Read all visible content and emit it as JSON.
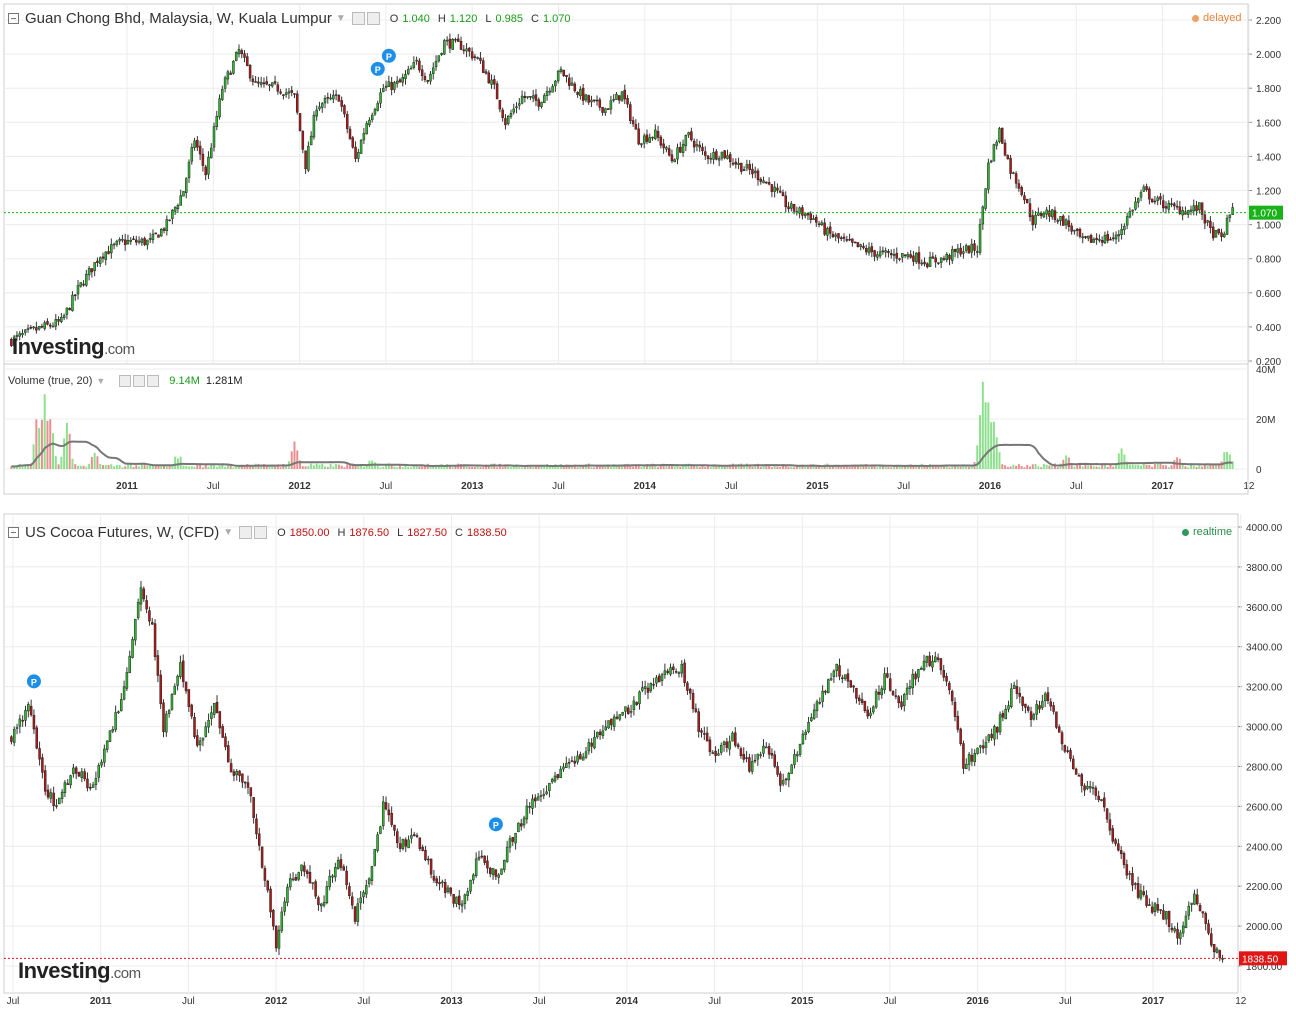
{
  "logo": {
    "main": "Investing",
    "suffix": ".com"
  },
  "top": {
    "title": "Guan Chong Bhd, Malaysia, W, Kuala Lumpur",
    "status": "delayed",
    "ohlc": {
      "o_label": "O",
      "o": "1.040",
      "h_label": "H",
      "h": "1.120",
      "l_label": "L",
      "l": "0.985",
      "c_label": "C",
      "c": "1.070"
    }
  },
  "volume": {
    "title": "Volume (true, 20)",
    "value": "9.14M",
    "ma": "1.281M"
  },
  "bottom": {
    "title": "US Cocoa Futures, W, (CFD)",
    "status": "realtime",
    "ohlc": {
      "o_label": "O",
      "o": "1850.00",
      "h_label": "H",
      "h": "1876.50",
      "l_label": "L",
      "l": "1827.50",
      "c_label": "C",
      "c": "1838.50"
    }
  },
  "colors": {
    "up": "#2db82d",
    "down": "#b01818",
    "grid": "#ececec",
    "last_top": "#19b219",
    "last_bottom": "#e01515",
    "marker": "#1e8fe8",
    "vol_up": "#8ee08e",
    "vol_down": "#e89090",
    "vol_ma": "#777777"
  },
  "chart_data": [
    {
      "type": "candlestick",
      "title": "Guan Chong Bhd, Malaysia, W, Kuala Lumpur",
      "y_ticks": [
        "2.200",
        "2.000",
        "1.800",
        "1.600",
        "1.400",
        "1.200",
        "1.000",
        "0.800",
        "0.600",
        "0.400",
        "0.200"
      ],
      "ylim": [
        0.2,
        2.2
      ],
      "x_ticks": [
        "2011",
        "Jul",
        "2012",
        "Jul",
        "2013",
        "Jul",
        "2014",
        "Jul",
        "2015",
        "Jul",
        "2016",
        "Jul",
        "2017",
        "12"
      ],
      "last_price": "1.070",
      "markers": [
        "P",
        "P"
      ],
      "path": [
        [
          0,
          0.32
        ],
        [
          8,
          0.38
        ],
        [
          18,
          0.43
        ],
        [
          24,
          0.62
        ],
        [
          32,
          0.82
        ],
        [
          40,
          0.9
        ],
        [
          50,
          0.9
        ],
        [
          56,
          1.0
        ],
        [
          62,
          1.2
        ],
        [
          66,
          1.5
        ],
        [
          70,
          1.3
        ],
        [
          76,
          1.8
        ],
        [
          82,
          2.02
        ],
        [
          88,
          1.82
        ],
        [
          96,
          1.8
        ],
        [
          102,
          1.75
        ],
        [
          106,
          1.35
        ],
        [
          110,
          1.7
        ],
        [
          118,
          1.75
        ],
        [
          124,
          1.38
        ],
        [
          128,
          1.6
        ],
        [
          134,
          1.8
        ],
        [
          140,
          1.83
        ],
        [
          146,
          1.95
        ],
        [
          150,
          1.85
        ],
        [
          156,
          2.07
        ],
        [
          162,
          2.05
        ],
        [
          168,
          1.97
        ],
        [
          174,
          1.8
        ],
        [
          178,
          1.6
        ],
        [
          184,
          1.75
        ],
        [
          190,
          1.72
        ],
        [
          198,
          1.9
        ],
        [
          204,
          1.78
        ],
        [
          208,
          1.72
        ],
        [
          214,
          1.68
        ],
        [
          220,
          1.77
        ],
        [
          226,
          1.5
        ],
        [
          232,
          1.53
        ],
        [
          238,
          1.38
        ],
        [
          244,
          1.52
        ],
        [
          250,
          1.4
        ],
        [
          256,
          1.42
        ],
        [
          262,
          1.35
        ],
        [
          268,
          1.3
        ],
        [
          274,
          1.22
        ],
        [
          280,
          1.1
        ],
        [
          288,
          1.05
        ],
        [
          294,
          0.95
        ],
        [
          300,
          0.9
        ],
        [
          306,
          0.86
        ],
        [
          312,
          0.83
        ],
        [
          318,
          0.82
        ],
        [
          324,
          0.82
        ],
        [
          330,
          0.78
        ],
        [
          336,
          0.8
        ],
        [
          342,
          0.85
        ],
        [
          348,
          0.86
        ],
        [
          352,
          1.35
        ],
        [
          356,
          1.55
        ],
        [
          360,
          1.32
        ],
        [
          364,
          1.2
        ],
        [
          368,
          1.02
        ],
        [
          372,
          1.08
        ],
        [
          376,
          1.05
        ],
        [
          380,
          1.01
        ],
        [
          386,
          0.9
        ],
        [
          392,
          0.92
        ],
        [
          398,
          0.92
        ],
        [
          404,
          1.1
        ],
        [
          408,
          1.2
        ],
        [
          412,
          1.14
        ],
        [
          418,
          1.1
        ],
        [
          424,
          1.08
        ],
        [
          428,
          1.1
        ],
        [
          432,
          0.96
        ],
        [
          436,
          0.92
        ],
        [
          440,
          1.1
        ]
      ],
      "volume_ticks": [
        "40M",
        "20M",
        "0"
      ],
      "volume_peaks": [
        [
          10,
          25
        ],
        [
          12,
          28
        ],
        [
          14,
          22
        ],
        [
          20,
          18
        ],
        [
          30,
          6
        ],
        [
          60,
          6
        ],
        [
          102,
          12
        ],
        [
          130,
          5
        ],
        [
          350,
          40
        ],
        [
          352,
          32
        ],
        [
          354,
          20
        ],
        [
          380,
          6
        ],
        [
          400,
          8
        ],
        [
          420,
          5
        ],
        [
          438,
          9
        ]
      ]
    },
    {
      "type": "candlestick",
      "title": "US Cocoa Futures, W, (CFD)",
      "y_ticks": [
        "4000.00",
        "3800.00",
        "3600.00",
        "3400.00",
        "3200.00",
        "3000.00",
        "2800.00",
        "2600.00",
        "2400.00",
        "2200.00",
        "2000.00",
        "1800.00"
      ],
      "ylim": [
        1800,
        4000
      ],
      "x_ticks": [
        "Jul",
        "2011",
        "Jul",
        "2012",
        "Jul",
        "2013",
        "Jul",
        "2014",
        "Jul",
        "2015",
        "Jul",
        "2016",
        "Jul",
        "2017",
        "12"
      ],
      "last_price": "1838.50",
      "markers": [
        "P",
        "P"
      ],
      "path": [
        [
          0,
          2950
        ],
        [
          6,
          3100
        ],
        [
          12,
          2700
        ],
        [
          16,
          2600
        ],
        [
          22,
          2800
        ],
        [
          28,
          2700
        ],
        [
          34,
          2900
        ],
        [
          40,
          3200
        ],
        [
          46,
          3700
        ],
        [
          50,
          3500
        ],
        [
          54,
          3000
        ],
        [
          60,
          3300
        ],
        [
          66,
          2900
        ],
        [
          72,
          3100
        ],
        [
          78,
          2800
        ],
        [
          84,
          2700
        ],
        [
          88,
          2400
        ],
        [
          94,
          1920
        ],
        [
          98,
          2200
        ],
        [
          104,
          2300
        ],
        [
          110,
          2100
        ],
        [
          116,
          2350
        ],
        [
          122,
          2050
        ],
        [
          128,
          2300
        ],
        [
          132,
          2600
        ],
        [
          138,
          2400
        ],
        [
          144,
          2450
        ],
        [
          150,
          2250
        ],
        [
          156,
          2150
        ],
        [
          160,
          2100
        ],
        [
          166,
          2350
        ],
        [
          172,
          2250
        ],
        [
          178,
          2450
        ],
        [
          184,
          2600
        ],
        [
          190,
          2700
        ],
        [
          196,
          2800
        ],
        [
          202,
          2850
        ],
        [
          208,
          2950
        ],
        [
          214,
          3050
        ],
        [
          220,
          3100
        ],
        [
          226,
          3200
        ],
        [
          232,
          3250
        ],
        [
          238,
          3300
        ],
        [
          244,
          3000
        ],
        [
          250,
          2850
        ],
        [
          256,
          2950
        ],
        [
          262,
          2800
        ],
        [
          268,
          2900
        ],
        [
          274,
          2700
        ],
        [
          280,
          2900
        ],
        [
          286,
          3100
        ],
        [
          292,
          3300
        ],
        [
          298,
          3200
        ],
        [
          304,
          3050
        ],
        [
          310,
          3250
        ],
        [
          316,
          3100
        ],
        [
          322,
          3300
        ],
        [
          328,
          3350
        ],
        [
          334,
          3150
        ],
        [
          338,
          2800
        ],
        [
          344,
          2900
        ],
        [
          350,
          3000
        ],
        [
          356,
          3200
        ],
        [
          362,
          3050
        ],
        [
          368,
          3150
        ],
        [
          374,
          2900
        ],
        [
          380,
          2700
        ],
        [
          386,
          2650
        ],
        [
          392,
          2400
        ],
        [
          398,
          2200
        ],
        [
          404,
          2100
        ],
        [
          410,
          2050
        ],
        [
          414,
          1950
        ],
        [
          420,
          2150
        ],
        [
          426,
          1920
        ],
        [
          430,
          1838.5
        ]
      ]
    }
  ]
}
